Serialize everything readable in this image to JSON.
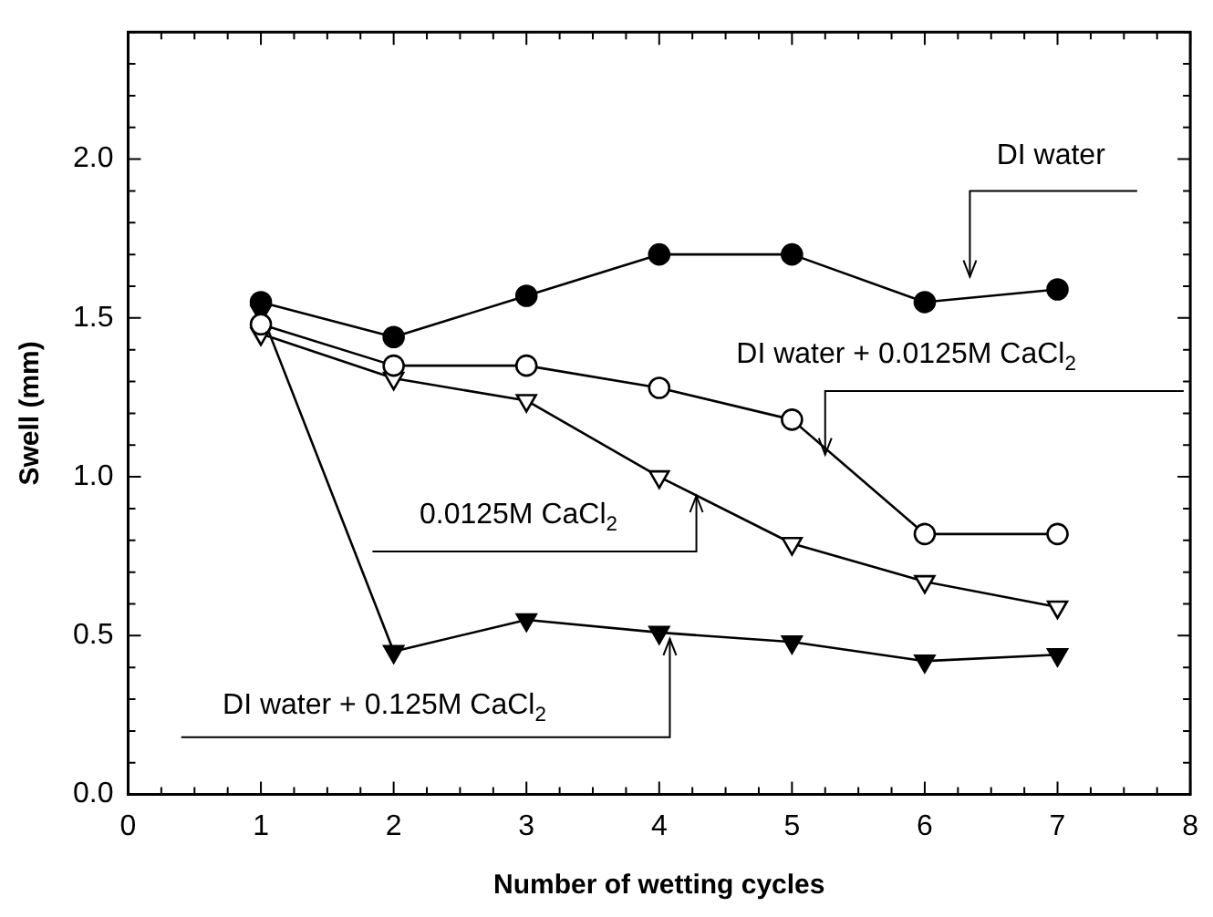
{
  "chart_data": {
    "type": "line",
    "xlabel": "Number of wetting cycles",
    "ylabel": "Swell (mm)",
    "x": [
      1,
      2,
      3,
      4,
      5,
      6,
      7
    ],
    "series": [
      {
        "name": "DI water",
        "color": "#000000",
        "marker": "circle",
        "values": [
          1.55,
          1.44,
          1.57,
          1.7,
          1.7,
          1.55,
          1.59
        ]
      },
      {
        "name": "DI water + 0.0125M CaCl$_{2}$",
        "color": "#ffffff",
        "marker": "circle",
        "values": [
          1.48,
          1.35,
          1.35,
          1.28,
          1.18,
          0.82,
          0.82
        ]
      },
      {
        "name": "0.0125M CaCl$_{2}$",
        "color": "#ffffff",
        "marker": "triangle",
        "values": [
          1.45,
          1.31,
          1.24,
          1.0,
          0.79,
          0.67,
          0.59
        ]
      },
      {
        "name": "DI water + 0.125M CaCl$_{2}$",
        "color": "#000000",
        "marker": "triangle",
        "values": [
          1.52,
          0.45,
          0.55,
          0.51,
          0.48,
          0.42,
          0.44
        ]
      }
    ],
    "xlim": [
      0,
      8
    ],
    "xticks": [
      0,
      {
        "value": 0.25,
        "label": null
      },
      {
        "value": 0.5,
        "label": null
      },
      {
        "value": 0.75,
        "label": null
      },
      1,
      {
        "value": 1.25,
        "label": null
      },
      {
        "value": 1.5,
        "label": null
      },
      {
        "value": 1.75,
        "label": null
      },
      2,
      {
        "value": 2.25,
        "label": null
      },
      {
        "value": 2.5,
        "label": null
      },
      {
        "value": 2.75,
        "label": null
      },
      3,
      {
        "value": 3.25,
        "label": null
      },
      {
        "value": 3.5,
        "label": null
      },
      {
        "value": 3.75,
        "label": null
      },
      4,
      {
        "value": 4.25,
        "label": null
      },
      {
        "value": 4.5,
        "label": null
      },
      {
        "value": 4.75,
        "label": null
      },
      5,
      {
        "value": 5.25,
        "label": null
      },
      {
        "value": 5.5,
        "label": null
      },
      {
        "value": 5.75,
        "label": null
      },
      6,
      {
        "value": 6.25,
        "label": null
      },
      {
        "value": 6.5,
        "label": null
      },
      {
        "value": 6.75,
        "label": null
      },
      7,
      {
        "value": 7.25,
        "label": null
      },
      {
        "value": 7.5,
        "label": null
      },
      {
        "value": 7.75,
        "label": null
      },
      8
    ],
    "ylim": [
      0,
      2.4
    ],
    "yticks": [
      {
        "value": 0,
        "label": "0.0"
      },
      {
        "value": 0.1,
        "label": null
      },
      {
        "value": 0.2,
        "label": null
      },
      {
        "value": 0.3,
        "label": null
      },
      {
        "value": 0.4,
        "label": null
      },
      {
        "value": 0.5,
        "label": "0.5"
      },
      {
        "value": 0.6,
        "label": null
      },
      {
        "value": 0.7,
        "label": null
      },
      {
        "value": 0.8,
        "label": null
      },
      {
        "value": 0.9,
        "label": null
      },
      {
        "value": 1.0,
        "label": "1.0"
      },
      {
        "value": 1.1,
        "label": null
      },
      {
        "value": 1.2,
        "label": null
      },
      {
        "value": 1.3,
        "label": null
      },
      {
        "value": 1.4,
        "label": null
      },
      {
        "value": 1.5,
        "label": "1.5"
      },
      {
        "value": 1.6,
        "label": null
      },
      {
        "value": 1.7,
        "label": null
      },
      {
        "value": 1.8,
        "label": null
      },
      {
        "value": 1.9,
        "label": null
      },
      {
        "value": 2.0,
        "label": "2.0"
      },
      {
        "value": 2.1,
        "label": null
      },
      {
        "value": 2.2,
        "label": null
      },
      {
        "value": 2.3,
        "label": null
      },
      {
        "value": 2.4,
        "label": null
      }
    ],
    "grid": false,
    "legend": false,
    "line_style": "solid"
  }
}
